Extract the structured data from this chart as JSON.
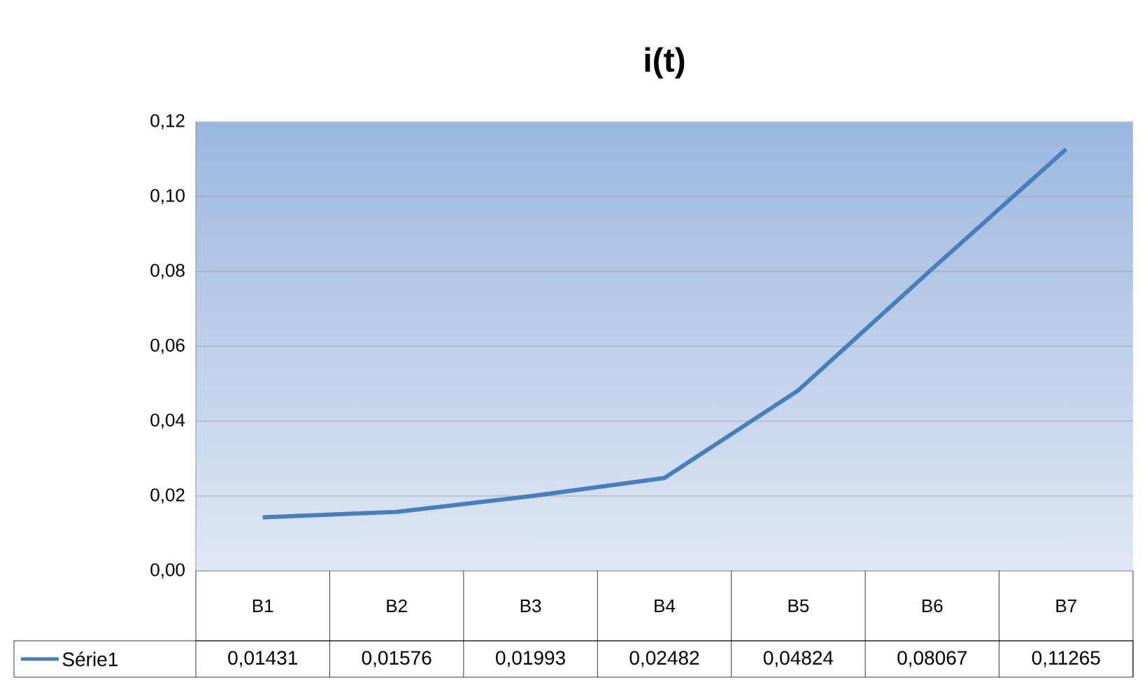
{
  "chart_data": {
    "type": "line",
    "title": "**i(t)**",
    "categories": [
      "B1",
      "B2",
      "B3",
      "B4",
      "B5",
      "B6",
      "B7"
    ],
    "series": [
      {
        "name": "Série1",
        "color": "#4a7ebb",
        "values": [
          0.01431,
          0.01576,
          0.01993,
          0.02482,
          0.04824,
          0.08067,
          0.11265
        ],
        "value_labels": [
          "0,01431",
          "0,01576",
          "0,01993",
          "0,02482",
          "0,04824",
          "0,08067",
          "0,11265"
        ]
      }
    ],
    "ylim": [
      0,
      0.12
    ],
    "yticks": [
      {
        "value": 0,
        "label": "0,00"
      },
      {
        "value": 0.02,
        "label": "0,02"
      },
      {
        "value": 0.04,
        "label": "0,04"
      },
      {
        "value": 0.06,
        "label": "0,06"
      },
      {
        "value": 0.08,
        "label": "0,08"
      },
      {
        "value": 0.1,
        "label": "0,10"
      },
      {
        "value": 0.12,
        "label": "0,12"
      }
    ],
    "grid": "y",
    "legend": "bottom left",
    "marker": "none",
    "line_style": "solid"
  }
}
